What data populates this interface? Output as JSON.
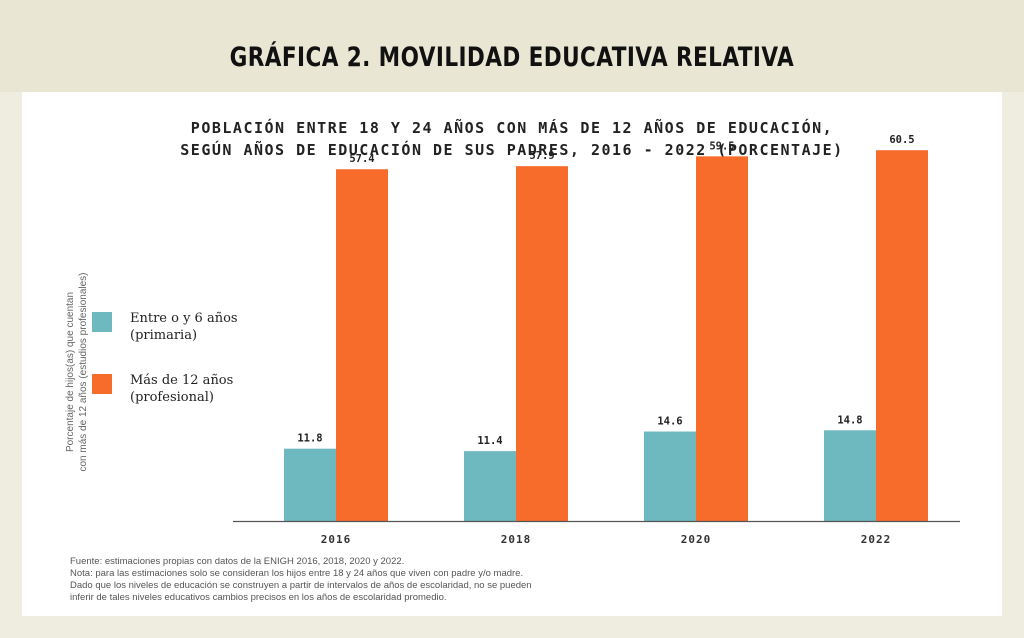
{
  "title": "GRÁFICA 2. MOVILIDAD EDUCATIVA RELATIVA",
  "subtitle_lines": [
    "POBLACIÓN ENTRE 18 Y 24 AÑOS CON MÁS DE 12 AÑOS DE EDUCACIÓN,",
    "SEGÚN AÑOS DE EDUCACIÓN DE SUS PADRES, 2016 - 2022 (PORCENTAJE)"
  ],
  "ylabel_lines": [
    "Porcentaje de hijos(as) que cuentan",
    "con más de 12 años (estudios profesionales)"
  ],
  "legend": [
    {
      "label_lines": [
        "Entre o y 6 años",
        "(primaria)"
      ],
      "color": "#6db9bf"
    },
    {
      "label_lines": [
        "Más de 12 años",
        "(profesional)"
      ],
      "color": "#f76b2b"
    }
  ],
  "footnote_lines": [
    "Fuente: estimaciones propias con datos de la ENIGH 2016, 2018, 2020 y 2022.",
    "Nota: para las estimaciones solo se consideran los hijos entre 18 y 24 años que viven con padre y/o madre.",
    "Dado que los niveles de educación se construyen a partir de intervalos de años de escolaridad, no se pueden",
    "inferir de tales niveles educativos cambios precisos en los años de escolaridad promedio."
  ],
  "chart_data": {
    "type": "bar",
    "categories": [
      "2016",
      "2018",
      "2020",
      "2022"
    ],
    "series": [
      {
        "name": "Entre o y 6 años (primaria)",
        "values": [
          11.8,
          11.4,
          14.6,
          14.8
        ],
        "color": "#6db9bf"
      },
      {
        "name": "Más de 12 años (profesional)",
        "values": [
          57.4,
          57.9,
          59.5,
          60.5
        ],
        "color": "#f76b2b"
      }
    ],
    "title": "GRÁFICA 2. MOVILIDAD EDUCATIVA RELATIVA",
    "subtitle": "POBLACIÓN ENTRE 18 Y 24 AÑOS CON MÁS DE 12 AÑOS DE EDUCACIÓN, SEGÚN AÑOS DE EDUCACIÓN DE SUS PADRES, 2016 - 2022 (PORCENTAJE)",
    "ylabel": "Porcentaje de hijos(as) que cuentan con más de 12 años (estudios profesionales)",
    "xlabel": "",
    "ylim": [
      0,
      70
    ],
    "grid": false,
    "legend_position": "left"
  }
}
